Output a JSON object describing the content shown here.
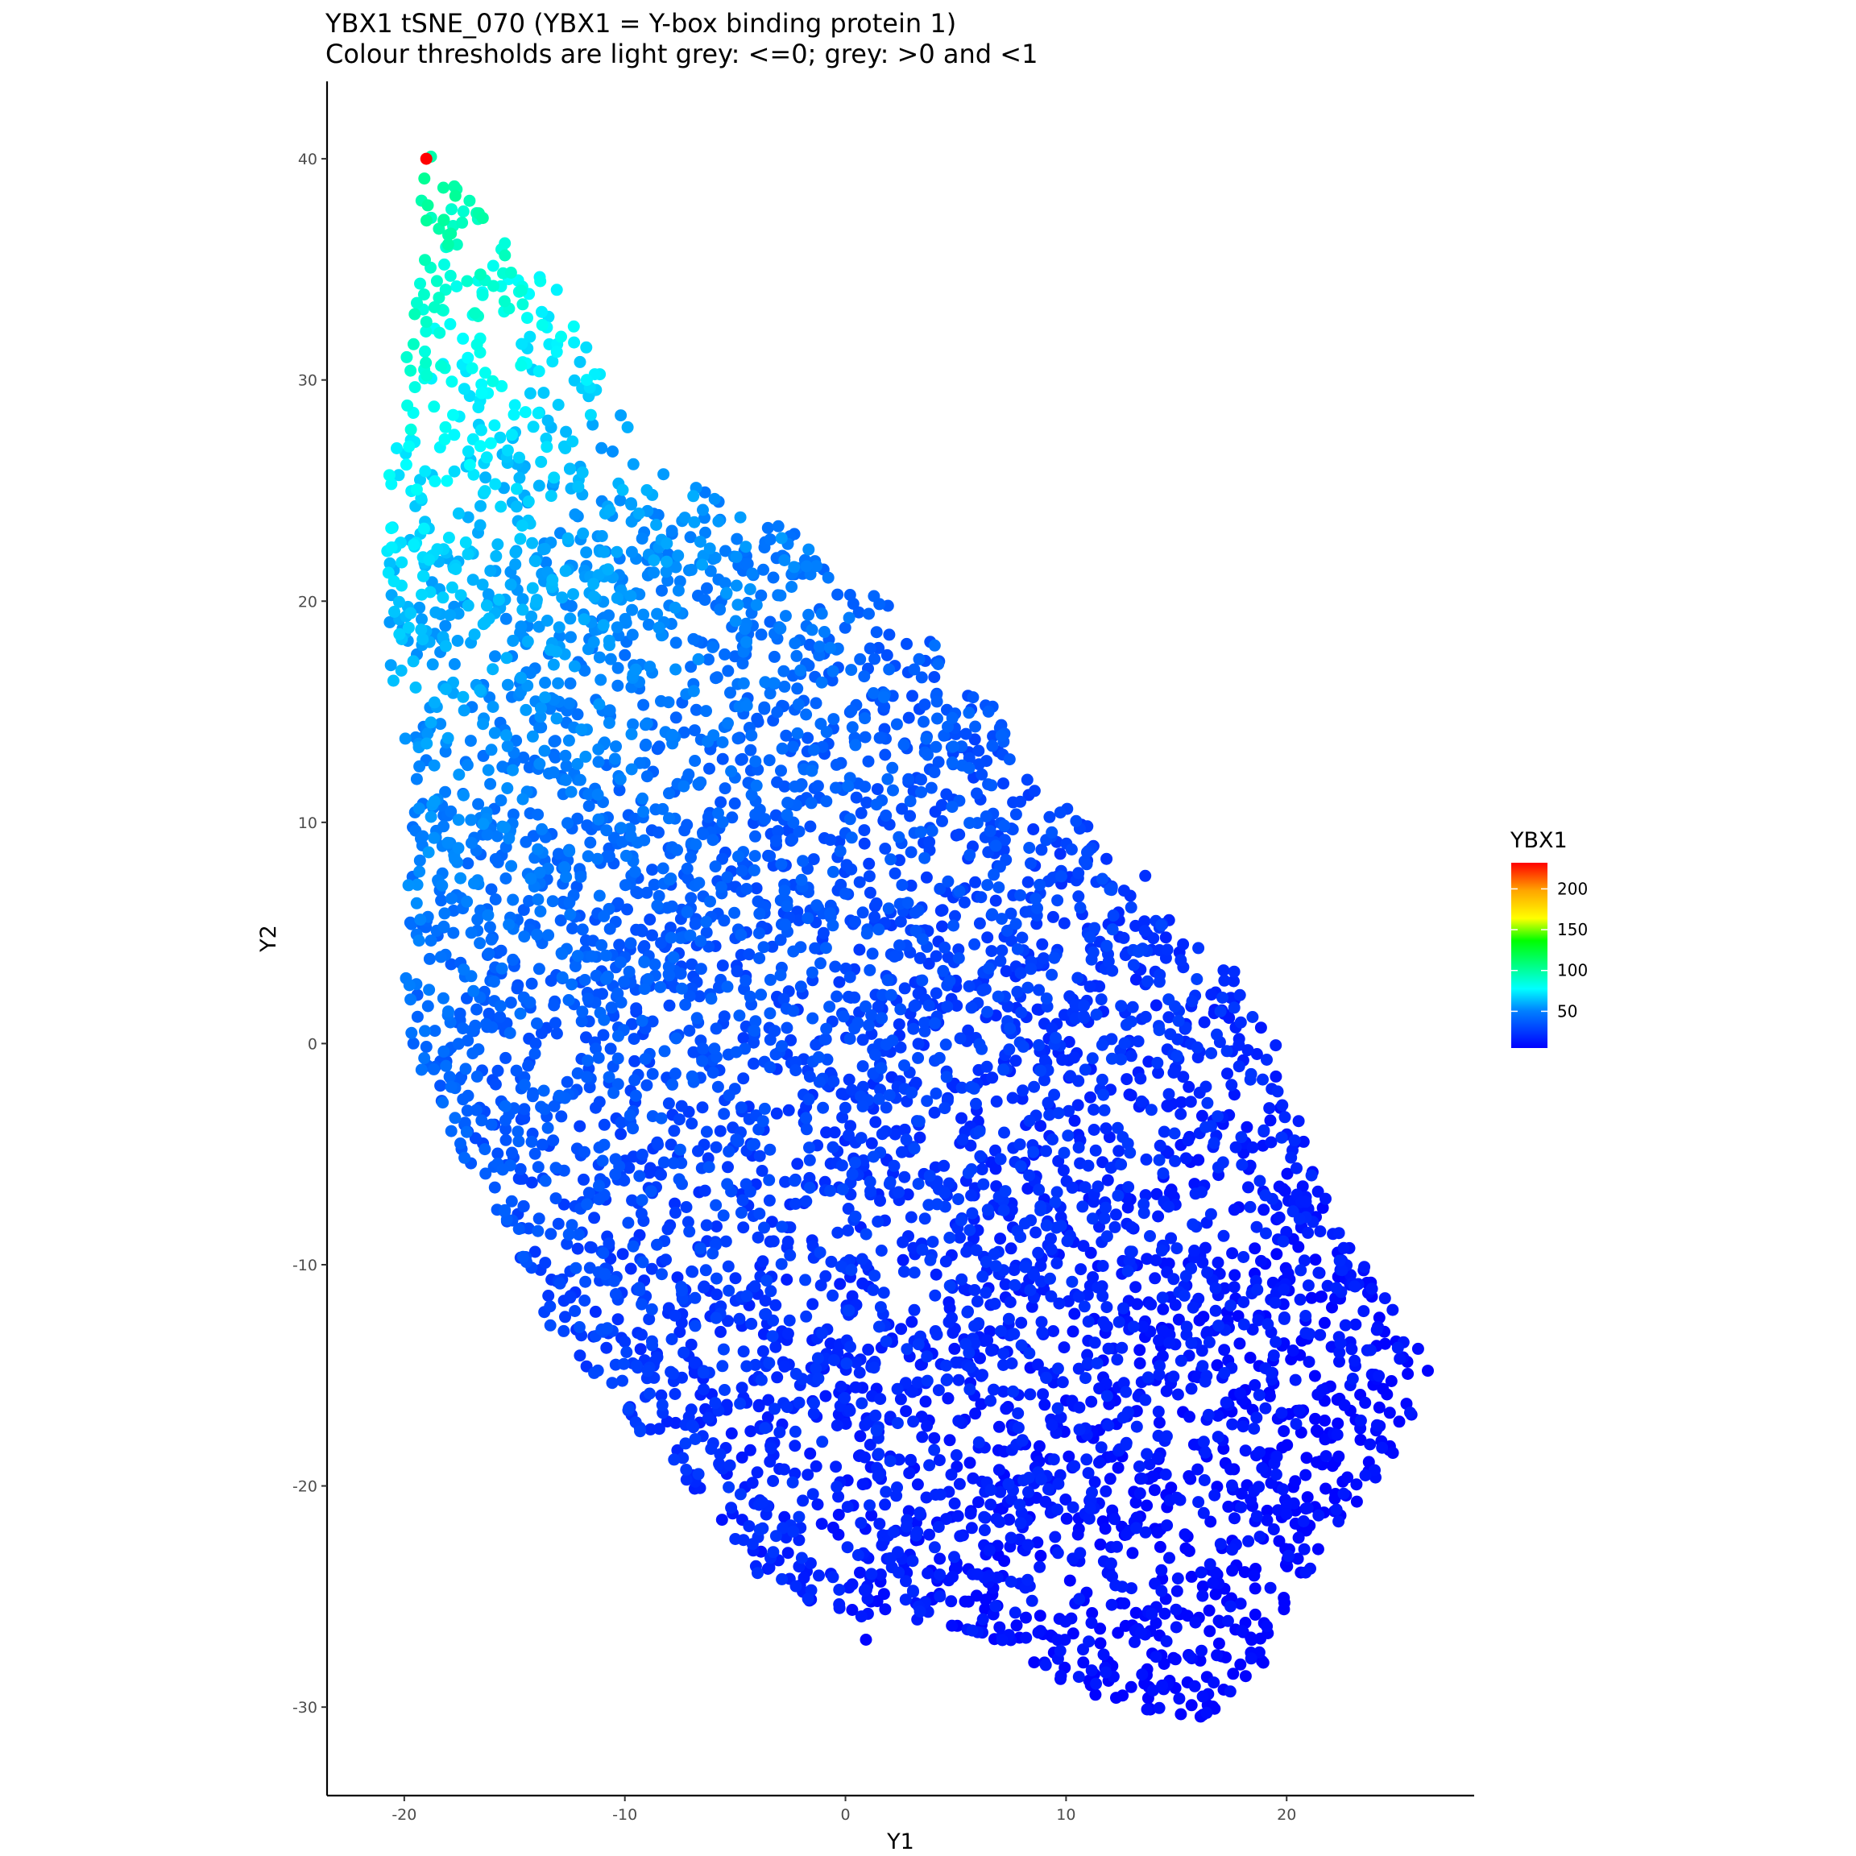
{
  "chart_data": {
    "type": "scatter",
    "title": "YBX1 tSNE_070 (YBX1 = Y-box binding protein 1)",
    "subtitle": "Colour thresholds are light grey: <=0; grey: >0 and <1",
    "xlabel": "Y1",
    "ylabel": "Y2",
    "xlim": [
      -23.5,
      28.5
    ],
    "ylim": [
      -34,
      43.5
    ],
    "xticks": [
      -20,
      -10,
      0,
      10,
      20
    ],
    "yticks": [
      -30,
      -20,
      -10,
      0,
      10,
      20,
      30,
      40
    ],
    "xtick_labels": [
      "-20",
      "-10",
      "0",
      "10",
      "20"
    ],
    "ytick_labels": [
      "-30",
      "-20",
      "-10",
      "0",
      "10",
      "20",
      "30",
      "40"
    ],
    "grid": false,
    "legend": {
      "title": "YBX1",
      "placement": "right",
      "type": "colorbar",
      "range": [
        5,
        232
      ],
      "ticks": [
        50,
        100,
        150,
        200
      ],
      "tick_labels": [
        "50",
        "100",
        "150",
        "200"
      ],
      "colors": [
        "#0000ff",
        "#00ffff",
        "#00ff00",
        "#ffff00",
        "#ff0000"
      ]
    },
    "point_count_approx": 5200,
    "density_regions": [
      {
        "region": "top-left tip",
        "x": [
          -19.5,
          -12
        ],
        "y": [
          27,
          40
        ],
        "value_range": [
          90,
          150
        ]
      },
      {
        "region": "upper-left lobe",
        "x": [
          -21,
          -2
        ],
        "y": [
          15,
          30
        ],
        "value_range": [
          55,
          100
        ]
      },
      {
        "region": "mid-left",
        "x": [
          -20,
          5
        ],
        "y": [
          -10,
          15
        ],
        "value_range": [
          35,
          70
        ]
      },
      {
        "region": "center",
        "x": [
          -5,
          15
        ],
        "y": [
          -20,
          5
        ],
        "value_range": [
          20,
          45
        ]
      },
      {
        "region": "lower-right",
        "x": [
          10,
          26
        ],
        "y": [
          -30,
          -5
        ],
        "value_range": [
          8,
          30
        ]
      }
    ],
    "highlight_points": [
      {
        "x": -19.0,
        "y": 40.0,
        "value": 232
      }
    ]
  }
}
